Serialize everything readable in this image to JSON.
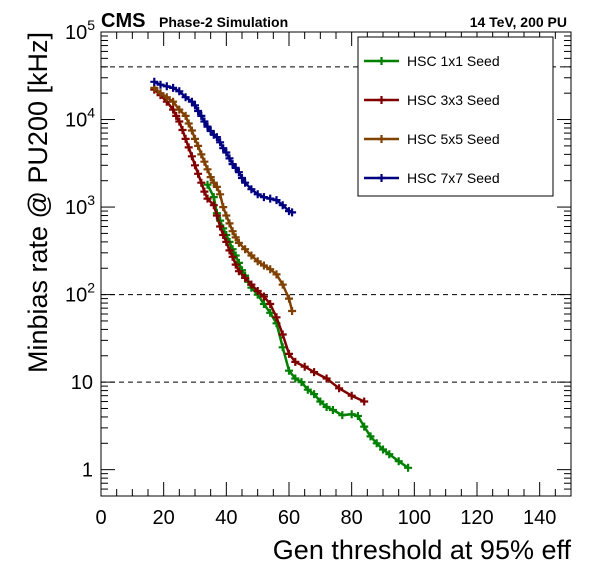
{
  "header": {
    "experiment": "CMS",
    "subtitle": "Phase-2 Simulation",
    "conditions": "14 TeV, 200 PU"
  },
  "chart_data": {
    "type": "line",
    "xlabel": "Gen threshold at 95% eff",
    "ylabel": "Minbias rate @ PU200 [kHz]",
    "xlim": [
      0,
      150
    ],
    "ylim": [
      0.5,
      100000
    ],
    "yscale": "log",
    "x_ticks": [
      0,
      20,
      40,
      60,
      80,
      100,
      120,
      140
    ],
    "y_ticks": [
      {
        "value": 1,
        "label": "1"
      },
      {
        "value": 10,
        "label": "10"
      },
      {
        "value": 100,
        "label": "10",
        "exp": "2"
      },
      {
        "value": 1000,
        "label": "10",
        "exp": "3"
      },
      {
        "value": 10000,
        "label": "10",
        "exp": "4"
      },
      {
        "value": 100000,
        "label": "10",
        "exp": "5"
      }
    ],
    "reference_lines": [
      40000,
      100,
      10
    ],
    "legend_position": "top-right",
    "series": [
      {
        "name": "HSC 1x1 Seed",
        "color": "#008000",
        "points": [
          [
            34,
            1800
          ],
          [
            36,
            1300
          ],
          [
            37,
            850
          ],
          [
            38,
            700
          ],
          [
            39,
            570
          ],
          [
            40,
            480
          ],
          [
            41,
            400
          ],
          [
            42,
            330
          ],
          [
            43,
            280
          ],
          [
            44,
            230
          ],
          [
            45,
            190
          ],
          [
            46,
            165
          ],
          [
            47,
            140
          ],
          [
            48,
            120
          ],
          [
            50,
            100
          ],
          [
            52,
            78
          ],
          [
            54,
            62
          ],
          [
            56,
            47
          ],
          [
            58,
            25
          ],
          [
            60,
            13.5
          ],
          [
            62,
            11
          ],
          [
            64,
            10
          ],
          [
            66,
            8.2
          ],
          [
            68,
            7.3
          ],
          [
            70,
            6
          ],
          [
            72,
            5.2
          ],
          [
            74,
            4.8
          ],
          [
            77,
            4.2
          ],
          [
            80,
            4.3
          ],
          [
            82,
            4.1
          ],
          [
            84,
            3.1
          ],
          [
            86,
            2.4
          ],
          [
            88,
            2.0
          ],
          [
            90,
            1.7
          ],
          [
            92,
            1.5
          ],
          [
            95,
            1.25
          ],
          [
            98,
            1.05
          ]
        ]
      },
      {
        "name": "HSC 3x3 Seed",
        "color": "#800000",
        "points": [
          [
            17,
            22000
          ],
          [
            19,
            19000
          ],
          [
            21,
            16000
          ],
          [
            23,
            13000
          ],
          [
            24,
            11000
          ],
          [
            25,
            9500
          ],
          [
            26,
            7600
          ],
          [
            27,
            6000
          ],
          [
            28,
            4800
          ],
          [
            29,
            3800
          ],
          [
            30,
            3000
          ],
          [
            31,
            2400
          ],
          [
            32,
            1900
          ],
          [
            33,
            1500
          ],
          [
            34,
            1250
          ],
          [
            36,
            1050
          ],
          [
            37,
            800
          ],
          [
            38,
            600
          ],
          [
            39,
            480
          ],
          [
            40,
            400
          ],
          [
            41,
            320
          ],
          [
            42,
            270
          ],
          [
            43,
            220
          ],
          [
            44,
            185
          ],
          [
            46,
            155
          ],
          [
            48,
            130
          ],
          [
            50,
            110
          ],
          [
            52,
            95
          ],
          [
            54,
            78
          ],
          [
            56,
            55
          ],
          [
            58,
            35
          ],
          [
            60,
            21
          ],
          [
            62,
            17
          ],
          [
            65,
            15
          ],
          [
            68,
            13
          ],
          [
            72,
            11
          ],
          [
            76,
            8.5
          ],
          [
            80,
            7
          ],
          [
            84,
            6
          ]
        ]
      },
      {
        "name": "HSC 5x5 Seed",
        "color": "#804000",
        "points": [
          [
            17,
            23000
          ],
          [
            19,
            20000
          ],
          [
            21,
            18000
          ],
          [
            23,
            16000
          ],
          [
            25,
            13000
          ],
          [
            27,
            11000
          ],
          [
            28,
            9000
          ],
          [
            29,
            7500
          ],
          [
            30,
            6000
          ],
          [
            31,
            5000
          ],
          [
            32,
            4000
          ],
          [
            33,
            3300
          ],
          [
            34,
            2700
          ],
          [
            35,
            2200
          ],
          [
            36,
            1900
          ],
          [
            37,
            1700
          ],
          [
            38,
            1400
          ],
          [
            39,
            1000
          ],
          [
            40,
            800
          ],
          [
            41,
            650
          ],
          [
            42,
            530
          ],
          [
            43,
            450
          ],
          [
            44,
            390
          ],
          [
            46,
            330
          ],
          [
            48,
            280
          ],
          [
            50,
            240
          ],
          [
            52,
            215
          ],
          [
            54,
            195
          ],
          [
            56,
            170
          ],
          [
            58,
            130
          ],
          [
            60,
            90
          ],
          [
            61,
            65
          ]
        ]
      },
      {
        "name": "HSC 7x7 Seed",
        "color": "#000080",
        "points": [
          [
            17,
            27000
          ],
          [
            19,
            25000
          ],
          [
            21,
            24000
          ],
          [
            23,
            23000
          ],
          [
            25,
            21000
          ],
          [
            27,
            18000
          ],
          [
            29,
            16000
          ],
          [
            30,
            14500
          ],
          [
            31,
            12500
          ],
          [
            32,
            11000
          ],
          [
            33,
            9500
          ],
          [
            34,
            8300
          ],
          [
            35,
            7400
          ],
          [
            36,
            6700
          ],
          [
            37,
            6300
          ],
          [
            38,
            5500
          ],
          [
            39,
            4700
          ],
          [
            40,
            4200
          ],
          [
            41,
            3600
          ],
          [
            42,
            3100
          ],
          [
            43,
            2800
          ],
          [
            44,
            2500
          ],
          [
            45,
            2150
          ],
          [
            46,
            1900
          ],
          [
            48,
            1600
          ],
          [
            50,
            1400
          ],
          [
            52,
            1300
          ],
          [
            54,
            1250
          ],
          [
            56,
            1200
          ],
          [
            58,
            1050
          ],
          [
            60,
            900
          ],
          [
            61,
            870
          ]
        ]
      }
    ]
  }
}
